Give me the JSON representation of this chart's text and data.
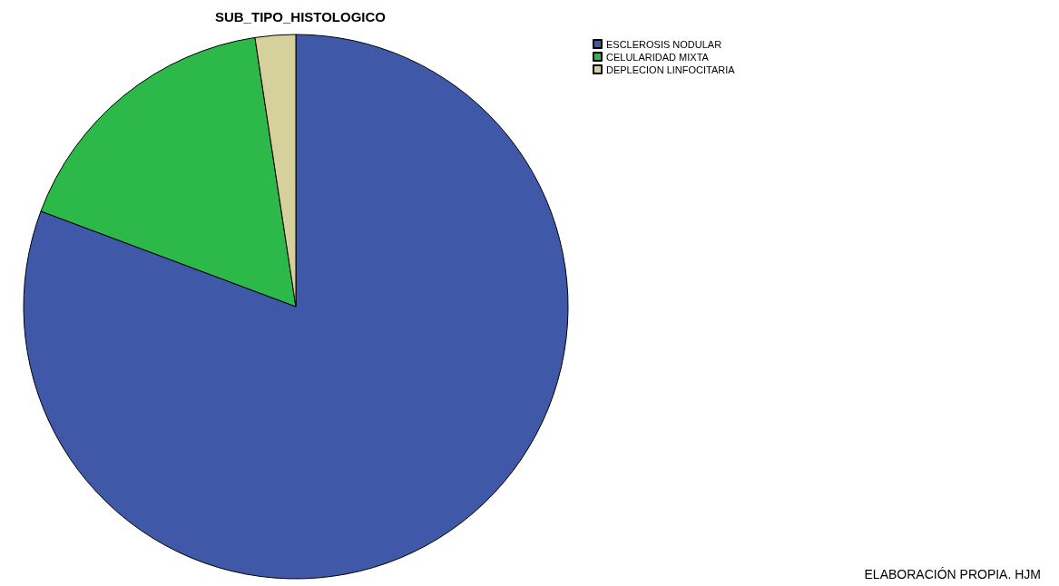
{
  "chart_data": {
    "type": "pie",
    "title": "SUB_TIPO_HISTOLOGICO",
    "categories": [
      "ESCLEROSIS NODULAR",
      "CELULARIDAD MIXTA",
      "DEPLECION LINFOCITARIA"
    ],
    "values": [
      80.7,
      16.9,
      2.4
    ],
    "colors": [
      "#3f58a8",
      "#2db84a",
      "#d6d09c"
    ],
    "legend": "top right",
    "annotations": [
      "ELABORACIÓN PROPIA. HJM"
    ]
  }
}
